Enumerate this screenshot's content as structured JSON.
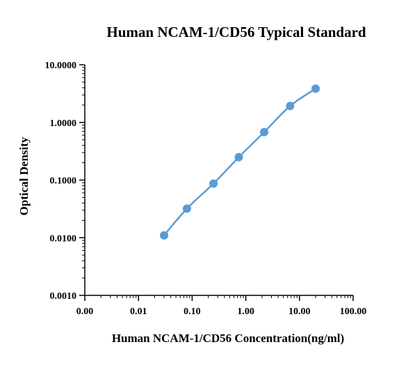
{
  "chart_data": {
    "type": "line",
    "title": "Human NCAM-1/CD56 Typical Standard",
    "xlabel": "Human NCAM-1/CD56 Concentration(ng/ml)",
    "ylabel": "Optical Density",
    "x_scale": "log",
    "y_scale": "log",
    "xlim": [
      0.001,
      100
    ],
    "ylim": [
      0.001,
      10
    ],
    "x_tick_values": [
      0.001,
      0.01,
      0.1,
      1,
      10,
      100
    ],
    "x_tick_labels": [
      "0.00",
      "0.01",
      "0.10",
      "1.00",
      "10.00",
      "100.00"
    ],
    "y_tick_values": [
      0.001,
      0.01,
      0.1,
      1,
      10
    ],
    "y_tick_labels": [
      "0.0010",
      "0.0100",
      "0.1000",
      "1.0000",
      "10.0000"
    ],
    "grid": false,
    "legend": "none",
    "series": [
      {
        "color": "#5b9bd5",
        "x": [
          0.03,
          0.08,
          0.25,
          0.74,
          2.2,
          6.7,
          20
        ],
        "y": [
          0.011,
          0.032,
          0.087,
          0.25,
          0.68,
          1.93,
          3.85
        ]
      }
    ]
  }
}
